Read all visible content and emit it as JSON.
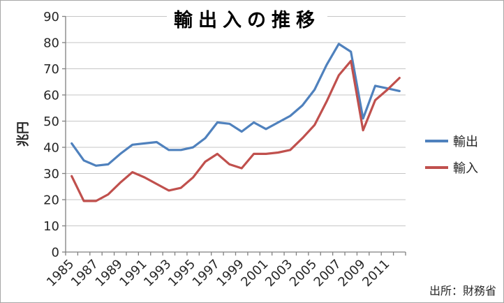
{
  "title": "輸出入の推移",
  "y_axis_title": "兆円",
  "source_note": "出所：財務省",
  "colors": {
    "exports": "#4F81BD",
    "imports": "#C0504D",
    "gridline": "#C6C6C6",
    "axis": "#808080",
    "label": "#262626"
  },
  "legend": {
    "items": [
      {
        "label": "輸出",
        "series": "exports"
      },
      {
        "label": "輸入",
        "series": "imports"
      }
    ]
  },
  "chart_data": {
    "type": "line",
    "title": "輸出入の推移",
    "ylabel": "兆円",
    "x": [
      1985,
      1986,
      1987,
      1988,
      1989,
      1990,
      1991,
      1992,
      1993,
      1994,
      1995,
      1996,
      1997,
      1998,
      1999,
      2000,
      2001,
      2002,
      2003,
      2004,
      2005,
      2006,
      2007,
      2008,
      2009,
      2010,
      2011,
      2012
    ],
    "x_axis_tick_labels": [
      "1985",
      "1987",
      "1989",
      "1991",
      "1993",
      "1995",
      "1997",
      "1999",
      "2001",
      "2003",
      "2005",
      "2007",
      "2009",
      "2011"
    ],
    "ylim": [
      0,
      90
    ],
    "ytick_step": 10,
    "grid": true,
    "legend_position": "right",
    "series": [
      {
        "name": "輸出",
        "color": "#4F81BD",
        "values": [
          41.5,
          35,
          33,
          33.5,
          37.5,
          41,
          41.5,
          42,
          39,
          39,
          40,
          43.5,
          49.5,
          49,
          46,
          49.5,
          47,
          49.5,
          52,
          56,
          62,
          71.5,
          79.5,
          76.5,
          51,
          63.5,
          62.5,
          61.5
        ]
      },
      {
        "name": "輸入",
        "color": "#C0504D",
        "values": [
          29,
          19.5,
          19.5,
          22,
          26.5,
          30.5,
          28.5,
          26,
          23.5,
          24.5,
          28.5,
          34.5,
          37.5,
          33.5,
          32,
          37.5,
          37.5,
          38,
          39,
          43.5,
          48.5,
          57.5,
          67.5,
          73,
          46.5,
          58,
          62,
          66.5
        ]
      }
    ]
  }
}
